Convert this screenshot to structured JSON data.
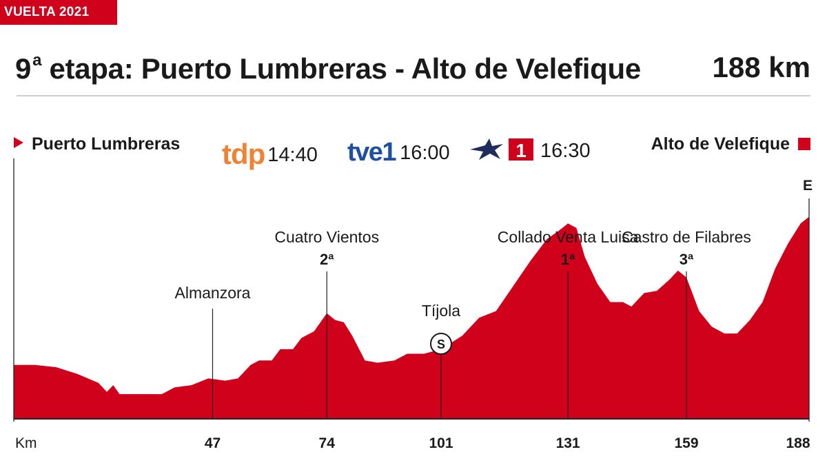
{
  "badge": "VUELTA 2021",
  "header": {
    "title_prefix": "9",
    "title_sup": "a",
    "title_rest": " etapa: Puerto Lumbreras - Alto de Velefique",
    "distance": "188 km"
  },
  "route": {
    "start": "Puerto Lumbreras",
    "end": "Alto de Velefique"
  },
  "broadcast": [
    {
      "channel": "tdp",
      "time": "14:40"
    },
    {
      "channel": "tve1",
      "time": "16:00"
    },
    {
      "channel": "Eurosport 1",
      "time": "16:30"
    }
  ],
  "colors": {
    "accent": "#d0021b",
    "tdp": "#ef8233",
    "tve": "#1d4fa3",
    "eurosport": "#1f2d5c"
  },
  "chart_data": {
    "type": "area",
    "xlabel": "Km",
    "xlim": [
      0,
      188
    ],
    "ticks": [
      47,
      74,
      101,
      131,
      159,
      188
    ],
    "profile": [
      [
        0,
        0.24
      ],
      [
        5,
        0.24
      ],
      [
        10,
        0.23
      ],
      [
        15,
        0.2
      ],
      [
        20,
        0.16
      ],
      [
        22,
        0.12
      ],
      [
        23.5,
        0.15
      ],
      [
        25,
        0.11
      ],
      [
        30,
        0.11
      ],
      [
        35,
        0.11
      ],
      [
        38,
        0.14
      ],
      [
        42,
        0.15
      ],
      [
        46,
        0.18
      ],
      [
        50,
        0.17
      ],
      [
        53,
        0.18
      ],
      [
        56,
        0.24
      ],
      [
        58,
        0.26
      ],
      [
        61,
        0.26
      ],
      [
        63,
        0.31
      ],
      [
        66,
        0.31
      ],
      [
        68,
        0.36
      ],
      [
        71,
        0.39
      ],
      [
        74,
        0.47
      ],
      [
        76,
        0.44
      ],
      [
        78,
        0.43
      ],
      [
        80,
        0.37
      ],
      [
        83,
        0.26
      ],
      [
        86,
        0.25
      ],
      [
        90,
        0.26
      ],
      [
        93,
        0.29
      ],
      [
        97,
        0.29
      ],
      [
        101,
        0.31
      ],
      [
        106,
        0.37
      ],
      [
        110,
        0.45
      ],
      [
        114,
        0.48
      ],
      [
        118,
        0.59
      ],
      [
        122,
        0.7
      ],
      [
        126,
        0.8
      ],
      [
        129,
        0.84
      ],
      [
        131,
        0.87
      ],
      [
        133,
        0.85
      ],
      [
        135,
        0.72
      ],
      [
        138,
        0.6
      ],
      [
        141,
        0.52
      ],
      [
        144,
        0.52
      ],
      [
        146,
        0.5
      ],
      [
        149,
        0.56
      ],
      [
        152,
        0.57
      ],
      [
        155,
        0.62
      ],
      [
        157,
        0.66
      ],
      [
        159,
        0.63
      ],
      [
        162,
        0.48
      ],
      [
        165,
        0.41
      ],
      [
        168,
        0.38
      ],
      [
        171,
        0.38
      ],
      [
        174,
        0.44
      ],
      [
        177,
        0.52
      ],
      [
        180,
        0.67
      ],
      [
        183,
        0.78
      ],
      [
        186,
        0.87
      ],
      [
        188,
        0.9
      ]
    ],
    "climbs": [
      {
        "km": 47,
        "name": "Almanzora",
        "category": ""
      },
      {
        "km": 74,
        "name": "Cuatro Vientos",
        "category": "2ª"
      },
      {
        "km": 101,
        "name": "Tíjola",
        "category": "",
        "sprint": "S"
      },
      {
        "km": 131,
        "name": "Collado Venta Luisa",
        "category": "1ª"
      },
      {
        "km": 159,
        "name": "Castro de Filabres",
        "category": "3ª"
      },
      {
        "km": 188,
        "name": "",
        "category": "E"
      }
    ]
  }
}
